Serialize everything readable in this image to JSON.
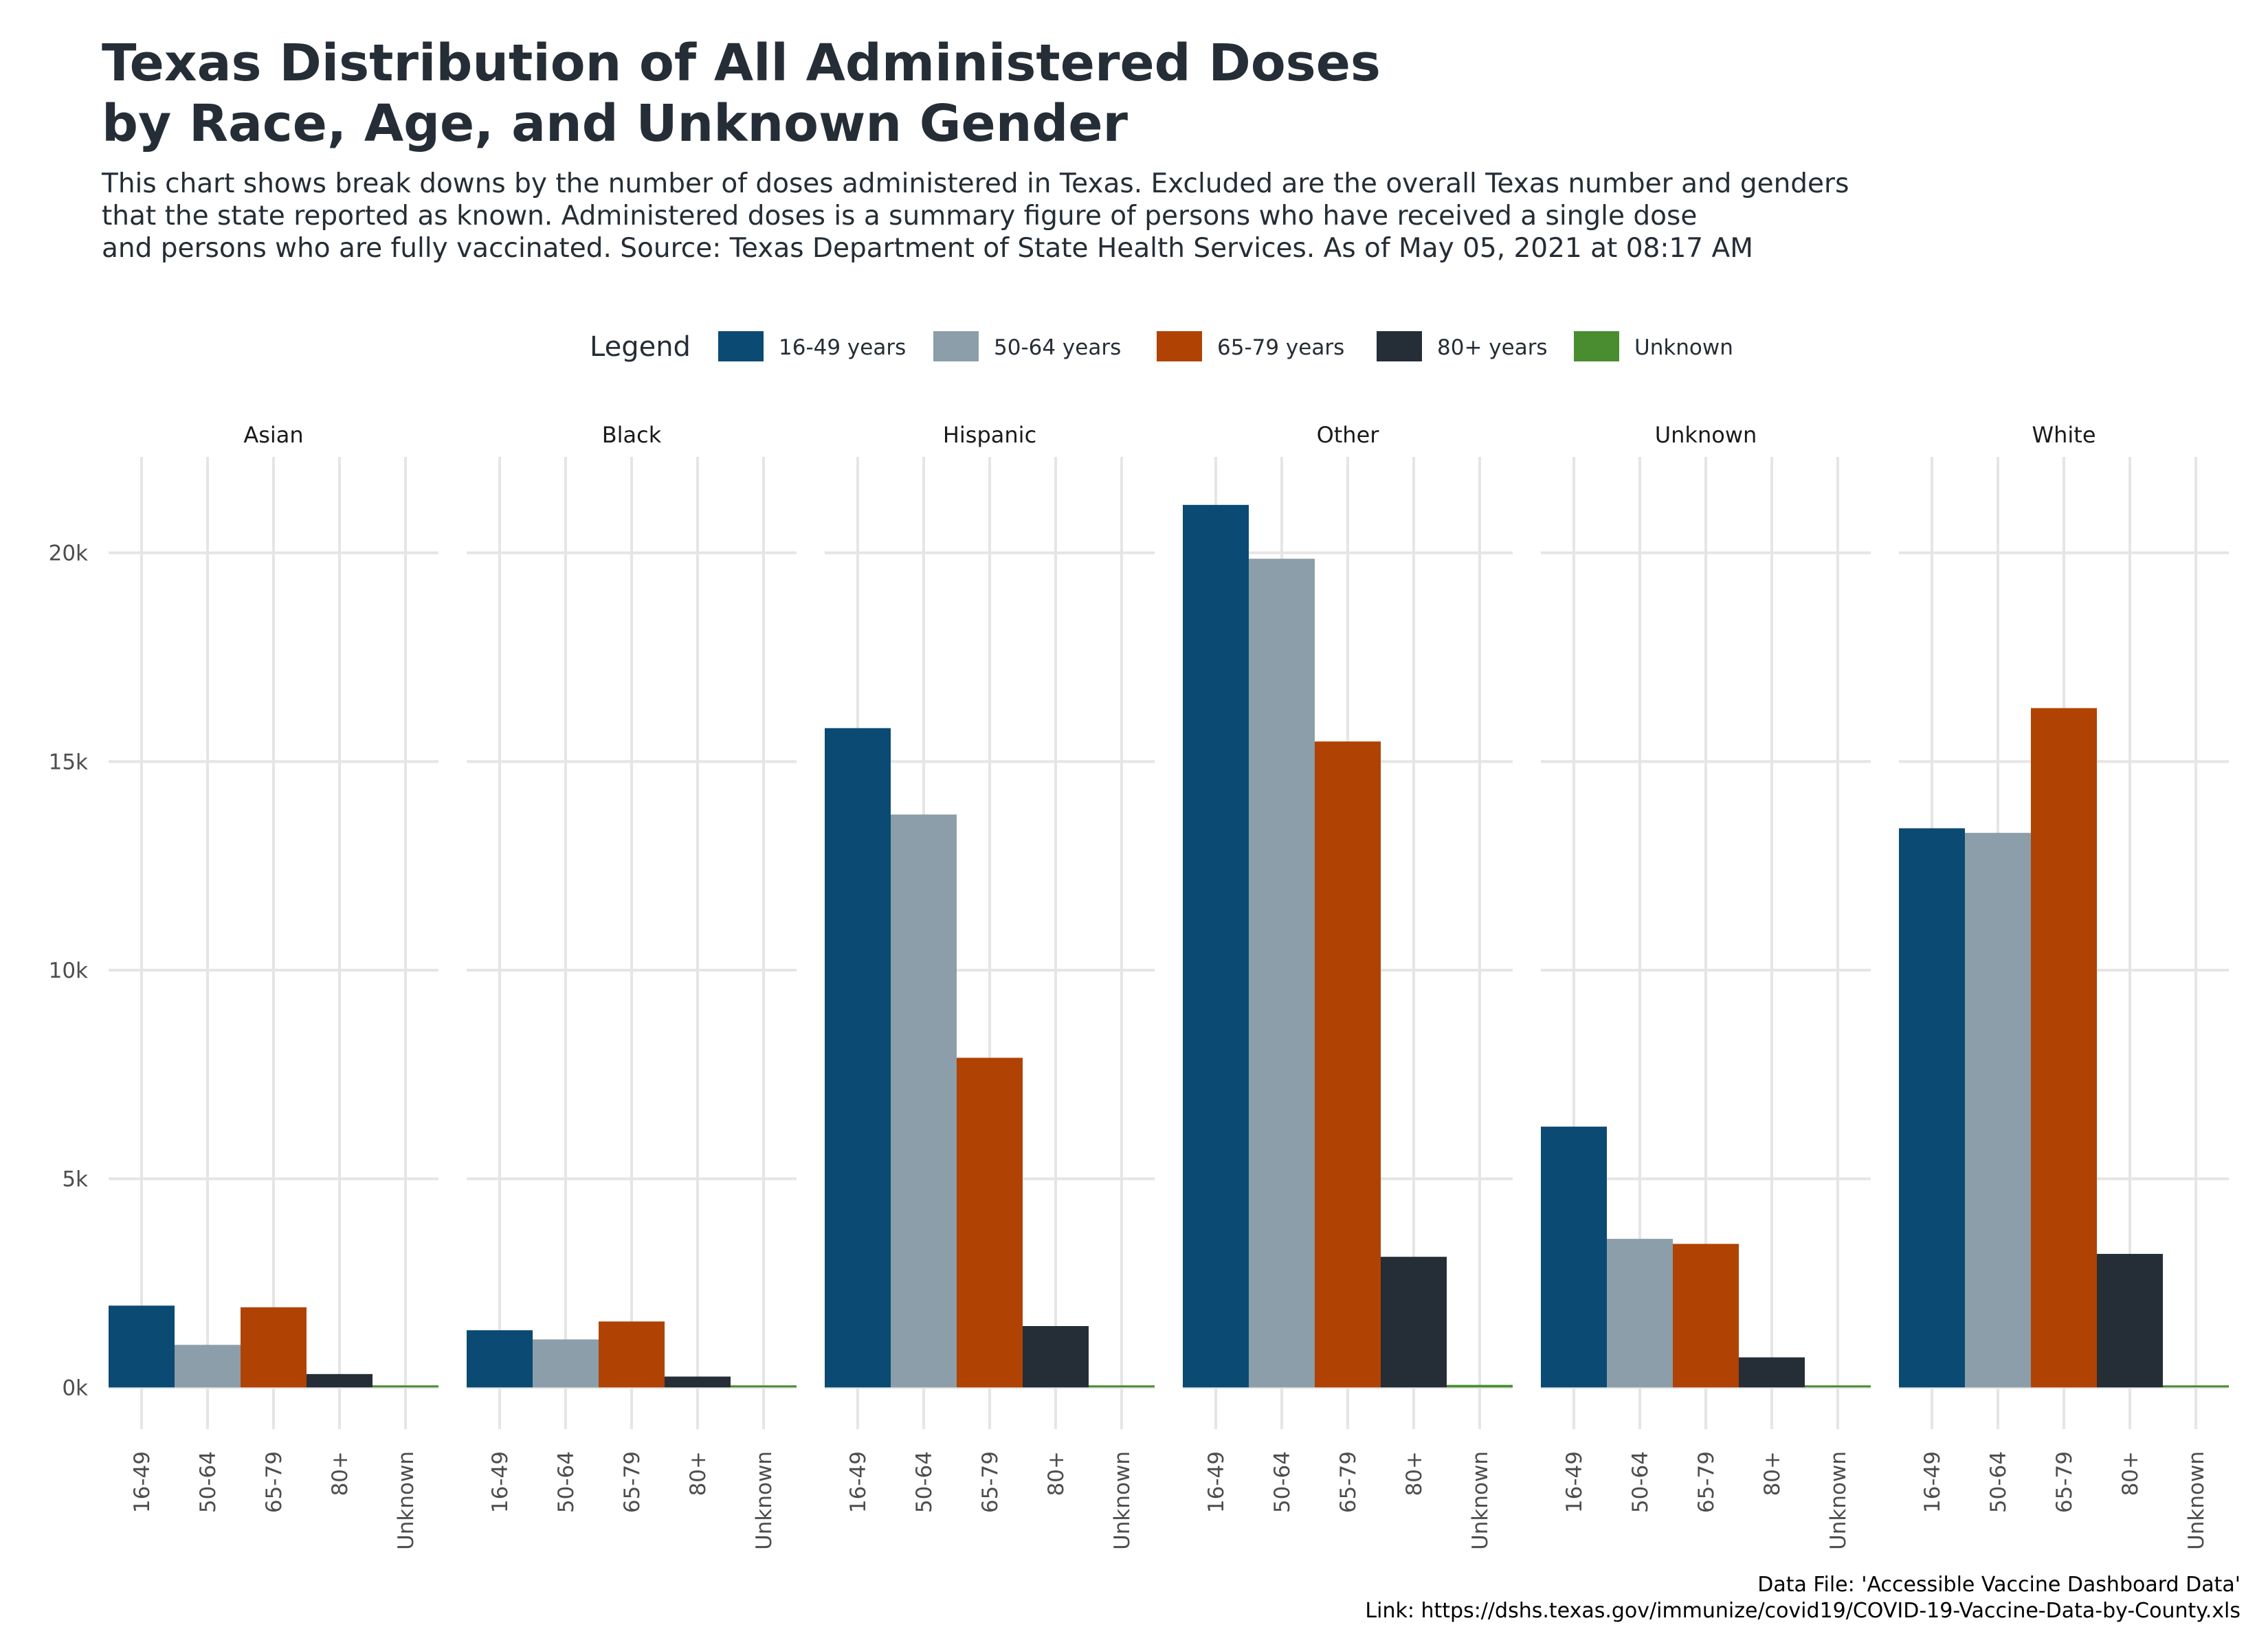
{
  "chart_data": {
    "type": "bar",
    "title": [
      "Texas Distribution of All Administered Doses",
      "by Race, Age, and Unknown Gender"
    ],
    "subtitle": [
      "This chart shows break downs by the number of doses administered in Texas. Excluded are the overall Texas number and genders",
      "that the state reported as known. Administered doses is a summary figure of persons who have received a single dose",
      "and persons who are fully vaccinated. Source: Texas Department of State Health Services. As of May 05, 2021 at 08:17 AM"
    ],
    "legend": {
      "title": "Legend",
      "position": "top",
      "entries": [
        {
          "label": "16-49 years",
          "color": "#0b4a72"
        },
        {
          "label": "50-64 years",
          "color": "#8c9ea9"
        },
        {
          "label": "65-79 years",
          "color": "#b04203"
        },
        {
          "label": "80+ years",
          "color": "#252d36"
        },
        {
          "label": "Unknown",
          "color": "#4a8c30"
        }
      ]
    },
    "categories": [
      "16-49",
      "50-64",
      "65-79",
      "80+",
      "Unknown"
    ],
    "y_ticks": [
      {
        "value": 0,
        "label": "0k"
      },
      {
        "value": 5000,
        "label": "5k"
      },
      {
        "value": 10000,
        "label": "10k"
      },
      {
        "value": 15000,
        "label": "15k"
      },
      {
        "value": 20000,
        "label": "20k"
      }
    ],
    "ylim": [
      -1000,
      22300
    ],
    "grid": true,
    "panels": [
      {
        "name": "Asian",
        "values": [
          1960,
          1020,
          1920,
          320,
          8
        ]
      },
      {
        "name": "Black",
        "values": [
          1370,
          1150,
          1580,
          260,
          6
        ]
      },
      {
        "name": "Hispanic",
        "values": [
          15800,
          13730,
          7900,
          1470,
          15
        ]
      },
      {
        "name": "Other",
        "values": [
          21150,
          19860,
          15480,
          3130,
          60
        ]
      },
      {
        "name": "Unknown",
        "values": [
          6250,
          3560,
          3440,
          720,
          20
        ]
      },
      {
        "name": "White",
        "values": [
          13400,
          13290,
          16280,
          3200,
          20
        ]
      }
    ]
  },
  "caption": {
    "line1": "Data File: 'Accessible Vaccine Dashboard Data'",
    "line2": "Link: https://dshs.texas.gov/immunize/covid19/COVID-19-Vaccine-Data-by-County.xls"
  }
}
